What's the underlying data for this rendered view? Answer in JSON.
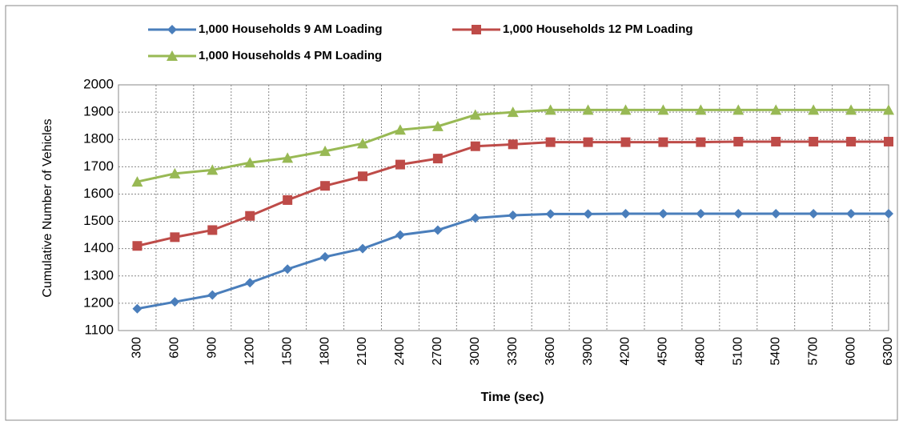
{
  "chart_data": {
    "type": "line",
    "x_label": "Time (sec)",
    "y_label": "Cumulative Number of Vehicles",
    "categories": [
      "300",
      "600",
      "900",
      "1200",
      "1500",
      "1800",
      "2100",
      "2400",
      "2700",
      "3000",
      "3300",
      "3600",
      "3900",
      "4200",
      "4500",
      "4800",
      "5100",
      "5400",
      "5700",
      "6000",
      "6300"
    ],
    "series": [
      {
        "name": "1,000 Households 9 AM Loading",
        "color": "#4a7ebb",
        "marker": "diamond",
        "values": [
          1180,
          1205,
          1230,
          1275,
          1325,
          1370,
          1400,
          1450,
          1468,
          1512,
          1522,
          1527,
          1527,
          1528,
          1528,
          1528,
          1528,
          1528,
          1528,
          1528,
          1528
        ]
      },
      {
        "name": "1,000 Households 12 PM Loading",
        "color": "#be4b48",
        "marker": "square",
        "values": [
          1410,
          1442,
          1468,
          1520,
          1578,
          1630,
          1665,
          1708,
          1730,
          1775,
          1782,
          1790,
          1790,
          1790,
          1790,
          1790,
          1792,
          1792,
          1792,
          1792,
          1792
        ]
      },
      {
        "name": "1,000 Households 4 PM Loading",
        "color": "#98b954",
        "marker": "triangle",
        "values": [
          1645,
          1675,
          1688,
          1715,
          1732,
          1757,
          1785,
          1835,
          1848,
          1890,
          1900,
          1908,
          1908,
          1908,
          1908,
          1908,
          1908,
          1908,
          1908,
          1908,
          1908
        ]
      }
    ],
    "ylim": [
      1100,
      2000
    ],
    "yticks": [
      1100,
      1200,
      1300,
      1400,
      1500,
      1600,
      1700,
      1800,
      1900,
      2000
    ],
    "grid": true
  }
}
